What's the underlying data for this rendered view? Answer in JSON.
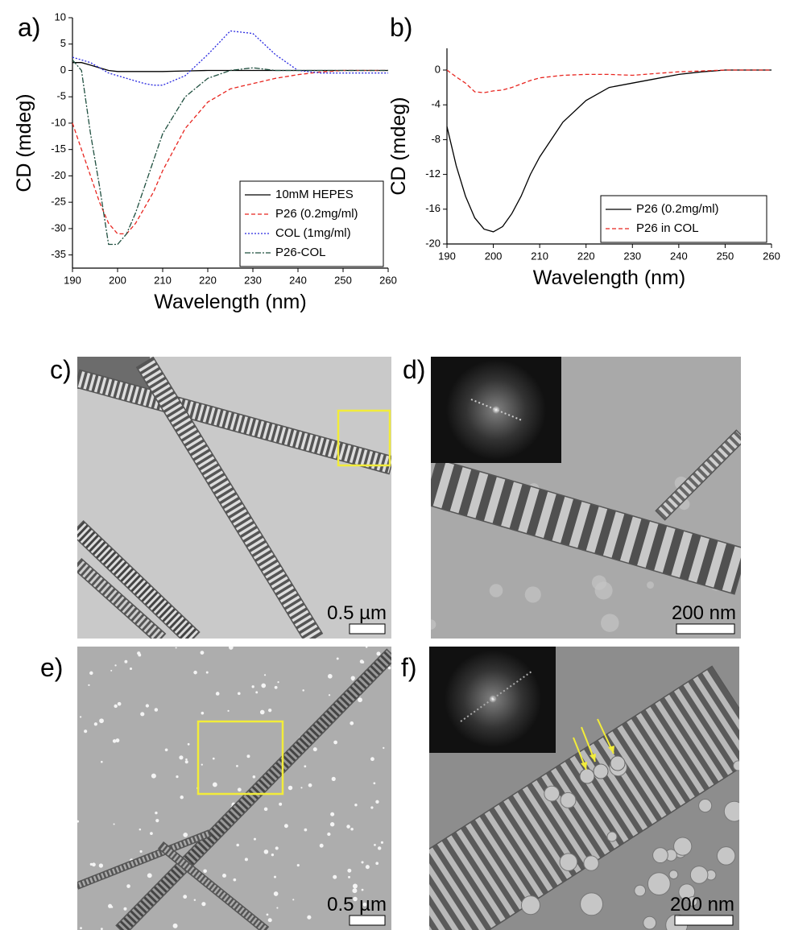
{
  "chart_data": [
    {
      "type": "line",
      "panel_label": "a)",
      "xlabel": "Wavelength (nm)",
      "ylabel": "CD (mdeg)",
      "x": [
        190,
        192,
        194,
        196,
        198,
        200,
        202,
        204,
        206,
        208,
        210,
        215,
        220,
        225,
        230,
        235,
        240,
        245,
        250,
        255,
        260
      ],
      "xlim": [
        190,
        260
      ],
      "xticks": [
        190,
        200,
        210,
        220,
        230,
        240,
        250,
        260
      ],
      "ylim": [
        -37.5,
        10
      ],
      "yticks": [
        -35,
        -30,
        -25,
        -20,
        -15,
        -10,
        -5,
        0,
        5,
        10
      ],
      "legend": "lower right",
      "series": [
        {
          "name": "10mM HEPES",
          "color": "#000000",
          "dash": "solid",
          "values": [
            1.5,
            1.5,
            1,
            0.5,
            0,
            -0.2,
            -0.2,
            -0.2,
            -0.2,
            -0.2,
            -0.2,
            -0.1,
            0,
            0,
            0,
            0,
            0,
            0,
            0,
            0,
            0
          ]
        },
        {
          "name": "P26 (0.2mg/ml)",
          "color": "#e8251f",
          "dash": "dashed",
          "values": [
            -10,
            -15,
            -20,
            -25,
            -29,
            -31,
            -31,
            -29,
            -26,
            -23,
            -19,
            -11,
            -6,
            -3.5,
            -2.5,
            -1.5,
            -0.8,
            -0.3,
            0,
            0,
            0
          ]
        },
        {
          "name": "COL (1mg/ml)",
          "color": "#2727e0",
          "dash": "dotted",
          "values": [
            2.5,
            2,
            1.5,
            0.5,
            -0.5,
            -1,
            -1.5,
            -2,
            -2.5,
            -2.8,
            -2.8,
            -1,
            3,
            7.5,
            7,
            3,
            0,
            -0.5,
            -0.5,
            -0.5,
            -0.5
          ]
        },
        {
          "name": "P26-COL",
          "color": "#1f4f3f",
          "dash": "dashdot",
          "values": [
            2,
            0,
            -12,
            -22,
            -33,
            -33,
            -31,
            -27,
            -22,
            -17,
            -12,
            -5,
            -1.5,
            0,
            0.5,
            0,
            0,
            0,
            0,
            0,
            0
          ]
        }
      ]
    },
    {
      "type": "line",
      "panel_label": "b)",
      "xlabel": "Wavelength (nm)",
      "ylabel": "CD (mdeg)",
      "x": [
        190,
        192,
        194,
        196,
        198,
        200,
        202,
        204,
        206,
        208,
        210,
        215,
        220,
        225,
        230,
        235,
        240,
        245,
        250,
        255,
        260
      ],
      "xlim": [
        190,
        260
      ],
      "xticks": [
        190,
        200,
        210,
        220,
        230,
        240,
        250,
        260
      ],
      "ylim": [
        -20,
        2.5
      ],
      "yticks": [
        -20,
        -16,
        -12,
        -8,
        -4,
        0
      ],
      "legend": "lower right",
      "series": [
        {
          "name": "P26 (0.2mg/ml)",
          "color": "#000000",
          "dash": "solid",
          "values": [
            -6.5,
            -11,
            -14.5,
            -17,
            -18.3,
            -18.6,
            -18,
            -16.5,
            -14.5,
            -12,
            -10,
            -6,
            -3.5,
            -2,
            -1.5,
            -1,
            -0.5,
            -0.2,
            0,
            0,
            0
          ]
        },
        {
          "name": "P26 in COL",
          "color": "#e8251f",
          "dash": "dashed",
          "values": [
            0,
            -0.8,
            -1.5,
            -2.5,
            -2.6,
            -2.4,
            -2.3,
            -2,
            -1.6,
            -1.2,
            -0.9,
            -0.6,
            -0.5,
            -0.5,
            -0.6,
            -0.4,
            -0.2,
            -0.1,
            0,
            0,
            0
          ]
        }
      ]
    }
  ],
  "micrographs": [
    {
      "label": "c)",
      "scale_bar": "0.5 µm"
    },
    {
      "label": "d)",
      "scale_bar": "200 nm"
    },
    {
      "label": "e)",
      "scale_bar": "0.5 µm"
    },
    {
      "label": "f)",
      "scale_bar": "200 nm"
    }
  ]
}
